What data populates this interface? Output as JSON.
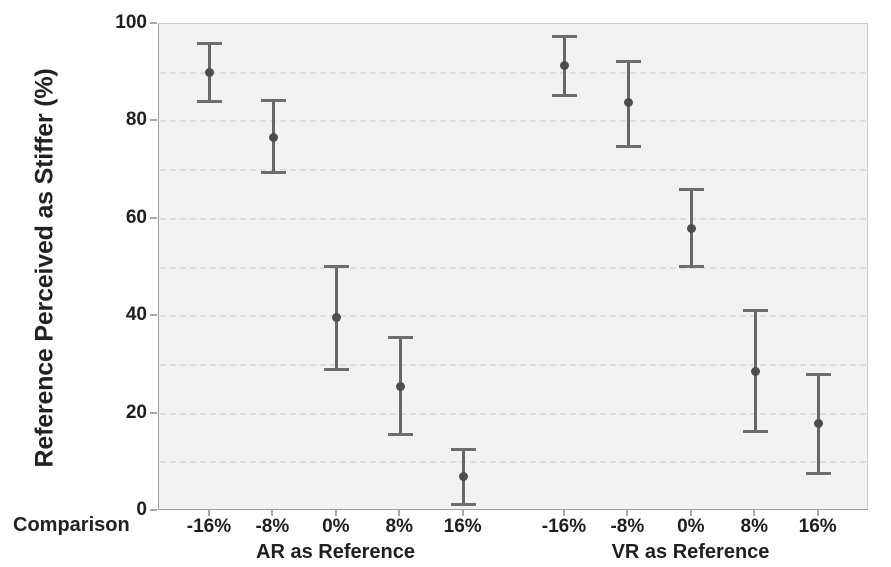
{
  "chart_data": {
    "type": "scatter",
    "title": "",
    "ylabel": "Reference Perceived as Stiffer (%)",
    "xlabel": "Comparison",
    "ylim": [
      0,
      100
    ],
    "yticks": [
      0,
      20,
      40,
      60,
      80,
      100
    ],
    "gridlines": [
      10,
      20,
      30,
      40,
      50,
      60,
      70,
      80,
      90
    ],
    "grid": "dashed",
    "legend": "none",
    "marker": "filled-circle-with-error-bars",
    "groups": [
      {
        "label": "AR as Reference",
        "categories": [
          "-16%",
          "-8%",
          "0%",
          "8%",
          "16%"
        ],
        "points": [
          {
            "x": "-16%",
            "mean": 90.0,
            "ci_low": 84.0,
            "ci_high": 96.0
          },
          {
            "x": "-8%",
            "mean": 76.6,
            "ci_low": 69.6,
            "ci_high": 84.2
          },
          {
            "x": "0%",
            "mean": 39.7,
            "ci_low": 29.1,
            "ci_high": 50.3
          },
          {
            "x": "8%",
            "mean": 25.6,
            "ci_low": 15.7,
            "ci_high": 35.6
          },
          {
            "x": "16%",
            "mean": 7.0,
            "ci_low": 1.4,
            "ci_high": 12.7
          }
        ]
      },
      {
        "label": "VR as Reference",
        "categories": [
          "-16%",
          "-8%",
          "0%",
          "8%",
          "16%"
        ],
        "points": [
          {
            "x": "-16%",
            "mean": 91.5,
            "ci_low": 85.4,
            "ci_high": 97.4
          },
          {
            "x": "-8%",
            "mean": 83.8,
            "ci_low": 74.8,
            "ci_high": 92.4
          },
          {
            "x": "0%",
            "mean": 58.0,
            "ci_low": 50.2,
            "ci_high": 66.1
          },
          {
            "x": "8%",
            "mean": 28.7,
            "ci_low": 16.3,
            "ci_high": 41.1
          },
          {
            "x": "16%",
            "mean": 17.9,
            "ci_low": 7.7,
            "ci_high": 28.0
          }
        ]
      }
    ],
    "colors": {
      "point": "#4d4d4d",
      "error_bar": "#666666",
      "grid_line": "#dedede",
      "plot_background": "#f2f2f2",
      "axis_line": "#9e9e9e",
      "text": "#1f1f1f"
    }
  }
}
